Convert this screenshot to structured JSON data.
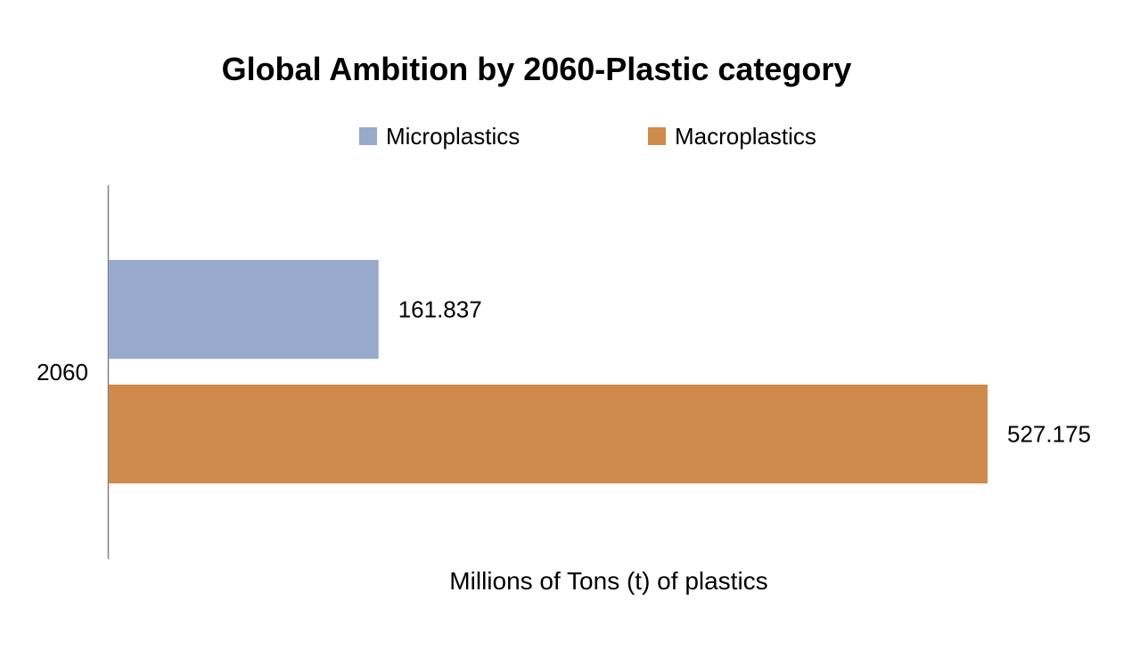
{
  "chart_data": {
    "type": "bar",
    "orientation": "horizontal",
    "title": "Global Ambition by 2060-Plastic category",
    "xlabel": "Millions of Tons (t) of plastics",
    "ylabel": "",
    "categories": [
      "2060"
    ],
    "series": [
      {
        "name": "Microplastics",
        "values": [
          161.837
        ],
        "labels": [
          "161.837"
        ],
        "color": "#97a9cd"
      },
      {
        "name": "Macroplastics",
        "values": [
          527.175
        ],
        "labels": [
          "527.175"
        ],
        "color": "#cf8b4c"
      }
    ],
    "xlim": [
      0,
      580
    ],
    "grid": false,
    "legend": "top"
  }
}
